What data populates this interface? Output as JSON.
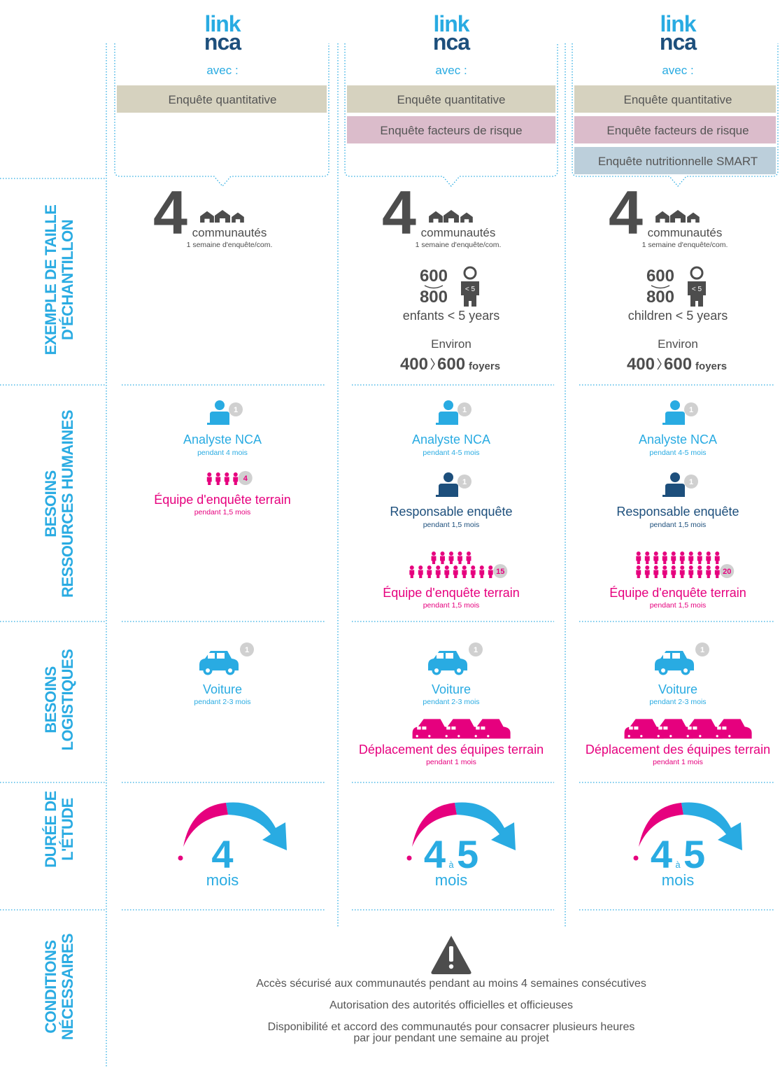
{
  "row_labels": [
    [
      "EXEMPLE DE TAILLE",
      "D'ÉCHANTILLON"
    ],
    [
      "BESOINS",
      "RESSOURCES HUMAINES"
    ],
    [
      "BESOINS",
      "LOGISTIQUES"
    ],
    [
      "DURÉE DE",
      "L'ÉTUDE"
    ],
    [
      "CONDITIONS",
      "NÉCESSAIRES"
    ]
  ],
  "columns": [
    {
      "logo": [
        "link",
        "nca"
      ],
      "with": "avec :",
      "surveys": [
        "Enquête quantitative"
      ],
      "sample": {
        "count": 4,
        "unit": "communautés",
        "note": "1 semaine d'enquête/com."
      },
      "hr": [
        {
          "role": "analyst",
          "count": 1,
          "title": "Analyste NCA",
          "duration": "pendant 4 mois"
        },
        {
          "role": "team",
          "count": 4,
          "title": "Équipe d'enquête terrain",
          "duration": "pendant 1,5 mois"
        }
      ],
      "logistics": [
        {
          "role": "car",
          "count": 1,
          "title": "Voiture",
          "duration": "pendant 2-3 mois"
        }
      ],
      "study": {
        "from": 4,
        "unit": "mois"
      }
    },
    {
      "logo": [
        "link",
        "nca"
      ],
      "with": "avec :",
      "surveys": [
        "Enquête quantitative",
        "Enquête facteurs de risque"
      ],
      "sample": {
        "count": 4,
        "unit": "communautés",
        "note": "1 semaine d'enquête/com.",
        "children": {
          "min": 600,
          "max": 800,
          "badge": "< 5",
          "label": "enfants < 5 years"
        },
        "households": {
          "prefix": "Environ",
          "min": 400,
          "max": 600,
          "unit": "foyers"
        }
      },
      "hr": [
        {
          "role": "analyst",
          "count": 1,
          "title": "Analyste NCA",
          "duration": "pendant 4-5 mois"
        },
        {
          "role": "manager",
          "count": 1,
          "title": "Responsable enquête",
          "duration": "pendant 1,5 mois"
        },
        {
          "role": "team",
          "count": 15,
          "title": "Équipe d'enquête terrain",
          "duration": "pendant 1,5 mois"
        }
      ],
      "logistics": [
        {
          "role": "car",
          "count": 1,
          "title": "Voiture",
          "duration": "pendant 2-3 mois"
        },
        {
          "role": "travel",
          "title": "Déplacement des équipes terrain",
          "duration": "pendant 1 mois"
        }
      ],
      "study": {
        "from": 4,
        "sep": "à",
        "to": 5,
        "unit": "mois"
      }
    },
    {
      "logo": [
        "link",
        "nca"
      ],
      "with": "avec :",
      "surveys": [
        "Enquête quantitative",
        "Enquête facteurs de risque",
        "Enquête nutritionnelle SMART"
      ],
      "sample": {
        "count": 4,
        "unit": "communautés",
        "note": "1 semaine d'enquête/com.",
        "children": {
          "min": 600,
          "max": 800,
          "badge": "< 5",
          "label": "children < 5 years"
        },
        "households": {
          "prefix": "Environ",
          "min": 400,
          "max": 600,
          "unit": "foyers"
        }
      },
      "hr": [
        {
          "role": "analyst",
          "count": 1,
          "title": "Analyste NCA",
          "duration": "pendant 4-5 mois"
        },
        {
          "role": "manager",
          "count": 1,
          "title": "Responsable enquête",
          "duration": "pendant 1,5 mois"
        },
        {
          "role": "team",
          "count": 20,
          "title": "Équipe d'enquête terrain",
          "duration": "pendant 1,5 mois"
        }
      ],
      "logistics": [
        {
          "role": "car",
          "count": 1,
          "title": "Voiture",
          "duration": "pendant 2-3 mois"
        },
        {
          "role": "travel",
          "title": "Déplacement des équipes terrain",
          "duration": "pendant 1 mois"
        }
      ],
      "study": {
        "from": 4,
        "sep": "à",
        "to": 5,
        "unit": "mois"
      }
    }
  ],
  "conditions": [
    "Accès sécurisé aux communautés pendant au moins 4 semaines consécutives",
    "Autorisation des autorités officielles et officieuses",
    [
      "Disponibilité et accord des communautés pour consacrer plusieurs heures",
      "par jour pendant une semaine au projet"
    ]
  ]
}
